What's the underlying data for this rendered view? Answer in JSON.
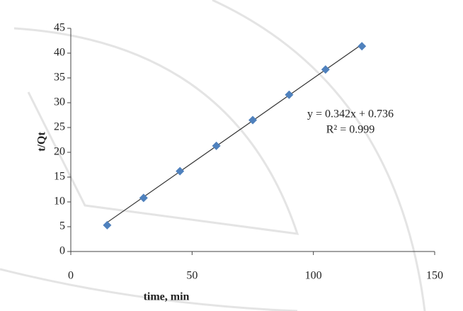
{
  "chart_data": {
    "type": "scatter",
    "x_label": "time, min",
    "y_label": "t/Qt",
    "series": [
      {
        "name": "t/Qt",
        "color": "#4f81bd",
        "x": [
          15,
          30,
          45,
          60,
          75,
          90,
          105,
          120
        ],
        "values": [
          5.3,
          10.8,
          16.2,
          21.3,
          26.5,
          31.6,
          36.7,
          41.4
        ]
      }
    ],
    "trendline": {
      "slope": 0.342,
      "intercept": 0.736,
      "color": "#333333",
      "label": "y = 0.342x + 0.736",
      "r2_label": "R² = 0.999"
    },
    "xlim": [
      0,
      150
    ],
    "xticks": [
      0,
      50,
      100,
      150
    ],
    "ylim": [
      0,
      45
    ],
    "yticks": [
      0,
      5,
      10,
      15,
      20,
      25,
      30,
      35,
      40,
      45
    ],
    "grid": false
  }
}
